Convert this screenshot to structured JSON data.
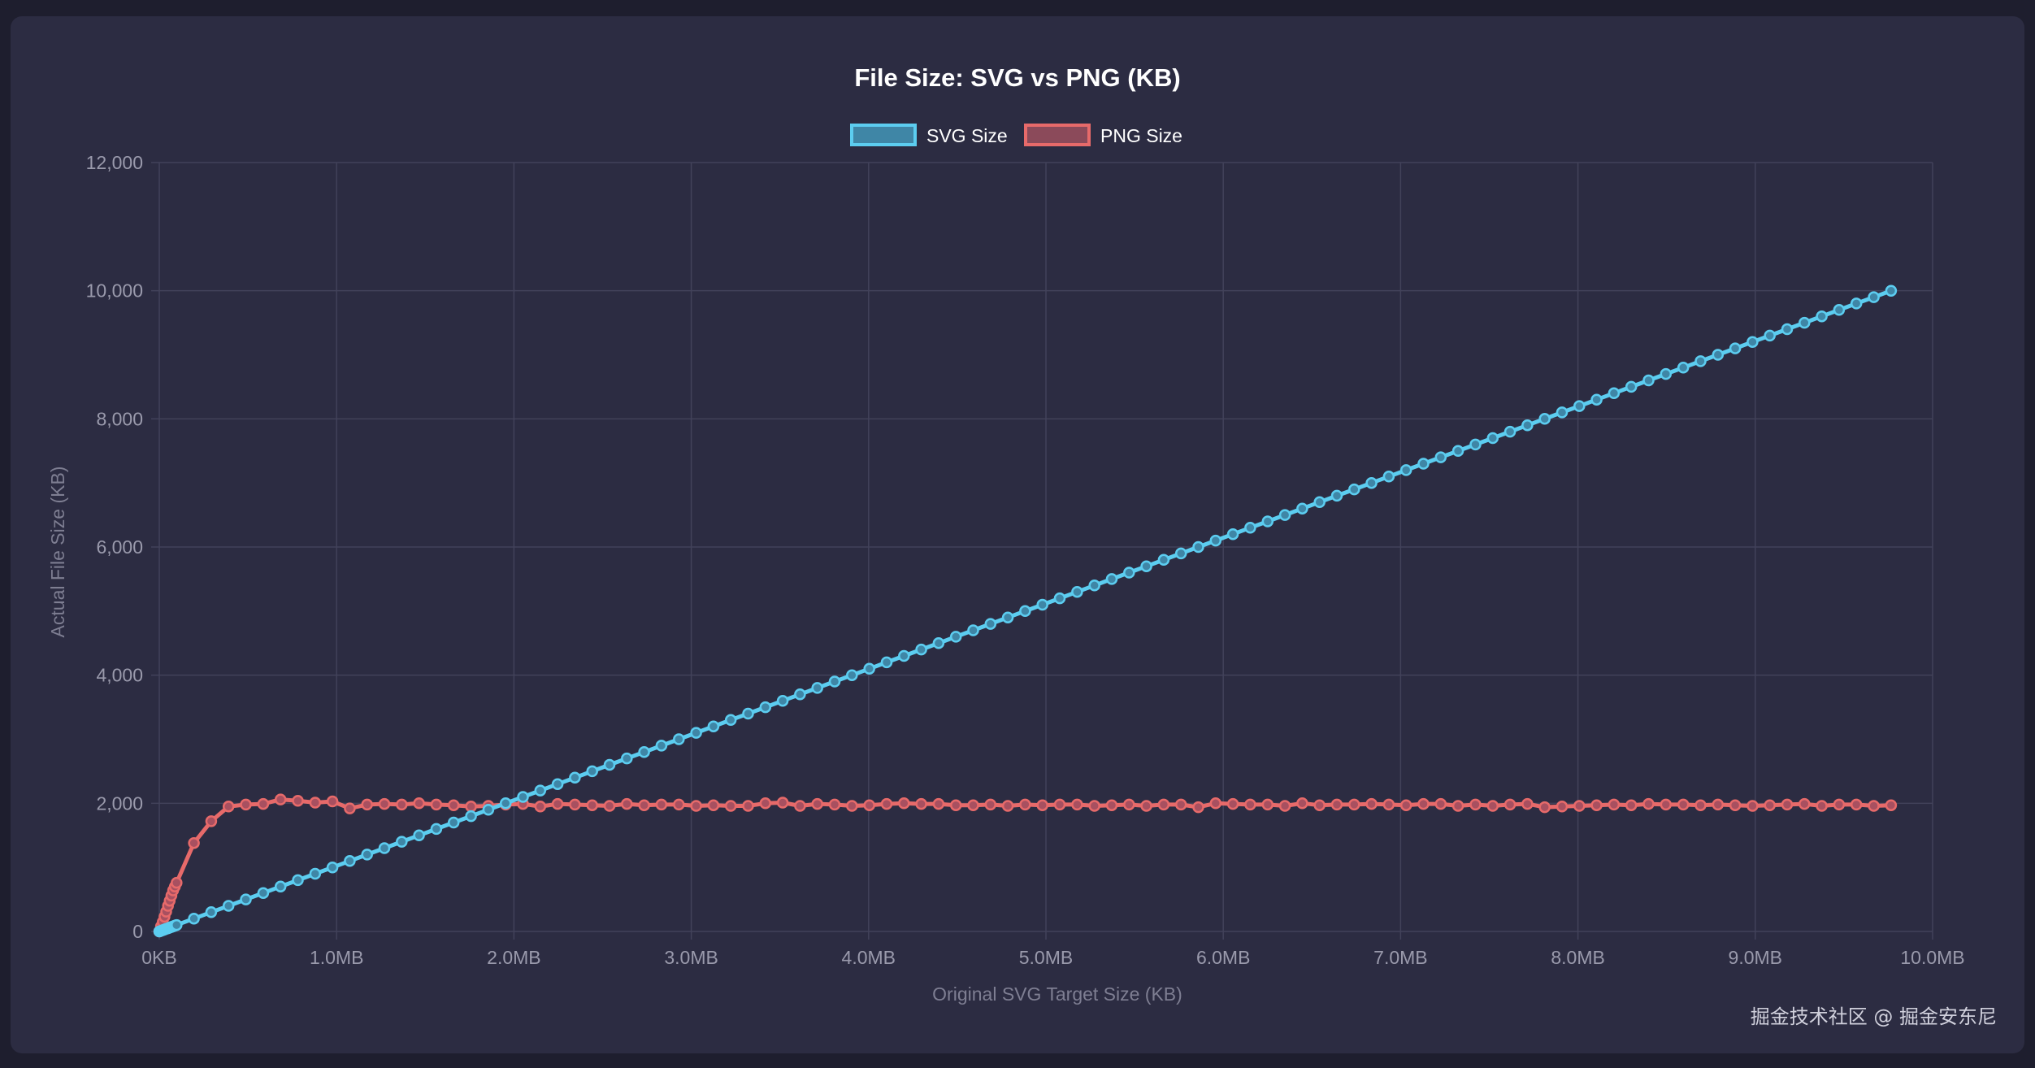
{
  "chart_data": {
    "type": "line",
    "title": "File Size: SVG vs PNG (KB)",
    "xlabel": "Original SVG Target Size (KB)",
    "ylabel": "Actual File Size (KB)",
    "xlim": [
      0,
      10240
    ],
    "ylim": [
      0,
      12000
    ],
    "grid": true,
    "legend_position": "top-center",
    "y_ticks": [
      "0",
      "2,000",
      "4,000",
      "6,000",
      "8,000",
      "10,000",
      "12,000"
    ],
    "x_ticks": [
      "0KB",
      "1.0MB",
      "2.0MB",
      "3.0MB",
      "4.0MB",
      "5.0MB",
      "6.0MB",
      "7.0MB",
      "8.0MB",
      "9.0MB",
      "10.0MB"
    ],
    "series": [
      {
        "name": "SVG Size",
        "color": "#5ccdf0",
        "x": [
          0,
          10,
          20,
          30,
          40,
          50,
          60,
          70,
          80,
          90,
          100,
          200,
          300,
          400,
          500,
          600,
          700,
          800,
          900,
          1000,
          1100,
          1200,
          1300,
          1400,
          1500,
          1600,
          1700,
          1800,
          1900,
          2000,
          2100,
          2200,
          2300,
          2400,
          2500,
          2600,
          2700,
          2800,
          2900,
          3000,
          3100,
          3200,
          3300,
          3400,
          3500,
          3600,
          3700,
          3800,
          3900,
          4000,
          4100,
          4200,
          4300,
          4400,
          4500,
          4600,
          4700,
          4800,
          4900,
          5000,
          5100,
          5200,
          5300,
          5400,
          5500,
          5600,
          5700,
          5800,
          5900,
          6000,
          6100,
          6200,
          6300,
          6400,
          6500,
          6600,
          6700,
          6800,
          6900,
          7000,
          7100,
          7200,
          7300,
          7400,
          7500,
          7600,
          7700,
          7800,
          7900,
          8000,
          8100,
          8200,
          8300,
          8400,
          8500,
          8600,
          8700,
          8800,
          8900,
          9000,
          9100,
          9200,
          9300,
          9400,
          9500,
          9600,
          9700,
          9800,
          9900,
          10000
        ],
        "values": [
          0,
          10,
          20,
          30,
          40,
          50,
          60,
          70,
          80,
          90,
          100,
          200,
          300,
          400,
          500,
          600,
          700,
          800,
          900,
          1000,
          1100,
          1200,
          1300,
          1400,
          1500,
          1600,
          1700,
          1800,
          1900,
          2000,
          2100,
          2200,
          2300,
          2400,
          2500,
          2600,
          2700,
          2800,
          2900,
          3000,
          3100,
          3200,
          3300,
          3400,
          3500,
          3600,
          3700,
          3800,
          3900,
          4000,
          4100,
          4200,
          4300,
          4400,
          4500,
          4600,
          4700,
          4800,
          4900,
          5000,
          5100,
          5200,
          5300,
          5400,
          5500,
          5600,
          5700,
          5800,
          5900,
          6000,
          6100,
          6200,
          6300,
          6400,
          6500,
          6600,
          6700,
          6800,
          6900,
          7000,
          7100,
          7200,
          7300,
          7400,
          7500,
          7600,
          7700,
          7800,
          7900,
          8000,
          8100,
          8200,
          8300,
          8400,
          8500,
          8600,
          8700,
          8800,
          8900,
          9000,
          9100,
          9200,
          9300,
          9400,
          9500,
          9600,
          9700,
          9800,
          9900,
          10000
        ]
      },
      {
        "name": "PNG Size",
        "color": "#e76a6a",
        "x": [
          0,
          10,
          20,
          30,
          40,
          50,
          60,
          70,
          80,
          90,
          100,
          200,
          300,
          400,
          500,
          600,
          700,
          800,
          900,
          1000,
          1100,
          1200,
          1300,
          1400,
          1500,
          1600,
          1700,
          1800,
          1900,
          2000,
          2100,
          2200,
          2300,
          2400,
          2500,
          2600,
          2700,
          2800,
          2900,
          3000,
          3100,
          3200,
          3300,
          3400,
          3500,
          3600,
          3700,
          3800,
          3900,
          4000,
          4100,
          4200,
          4300,
          4400,
          4500,
          4600,
          4700,
          4800,
          4900,
          5000,
          5100,
          5200,
          5300,
          5400,
          5500,
          5600,
          5700,
          5800,
          5900,
          6000,
          6100,
          6200,
          6300,
          6400,
          6500,
          6600,
          6700,
          6800,
          6900,
          7000,
          7100,
          7200,
          7300,
          7400,
          7500,
          7600,
          7700,
          7800,
          7900,
          8000,
          8100,
          8200,
          8300,
          8400,
          8500,
          8600,
          8700,
          8800,
          8900,
          9000,
          9100,
          9200,
          9300,
          9400,
          9500,
          9600,
          9700,
          9800,
          9900,
          10000
        ],
        "values": [
          0,
          80,
          150,
          230,
          310,
          400,
          480,
          560,
          640,
          700,
          760,
          1380,
          1720,
          1950,
          1980,
          1990,
          2060,
          2040,
          2010,
          2030,
          1920,
          1980,
          1990,
          1980,
          2000,
          1980,
          1970,
          1950,
          1960,
          1980,
          1990,
          1950,
          1990,
          1980,
          1970,
          1960,
          1990,
          1970,
          1980,
          1980,
          1960,
          1970,
          1960,
          1960,
          2000,
          2010,
          1960,
          1990,
          1980,
          1960,
          1970,
          1990,
          2000,
          1990,
          1990,
          1970,
          1970,
          1980,
          1960,
          1980,
          1970,
          1980,
          1980,
          1960,
          1970,
          1980,
          1960,
          1980,
          1980,
          1940,
          2000,
          1990,
          1980,
          1980,
          1960,
          2000,
          1970,
          1980,
          1980,
          1990,
          1980,
          1970,
          1990,
          1990,
          1960,
          1980,
          1960,
          1980,
          1990,
          1940,
          1950,
          1960,
          1970,
          1980,
          1970,
          1990,
          1980,
          1980,
          1970,
          1980,
          1970,
          1960,
          1970,
          1980,
          1990,
          1960,
          1980,
          1980,
          1960,
          1970
        ]
      }
    ]
  },
  "watermark": "掘金技术社区 @ 掘金安东尼"
}
